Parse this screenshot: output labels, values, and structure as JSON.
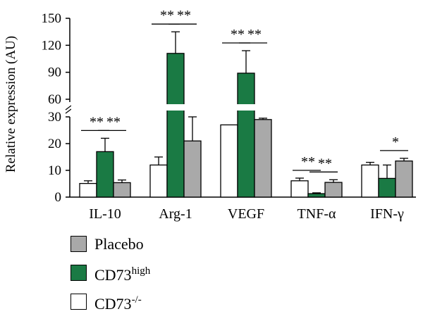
{
  "chart_data": {
    "type": "bar",
    "ylabel": "Relative expression (AU)",
    "y_axis_break": [
      30,
      60
    ],
    "ylim_lower": [
      0,
      30
    ],
    "ylim_upper": [
      60,
      150
    ],
    "yticks_lower": [
      "0",
      "10",
      "20",
      "30"
    ],
    "yticks_upper": [
      "60",
      "90",
      "120",
      "150"
    ],
    "categories": [
      "IL-10",
      "Arg-1",
      "VEGF",
      "TNF-α",
      "IFN-γ"
    ],
    "series": [
      {
        "name": "CD73",
        "superscript": "-/-",
        "color": "#ffffff",
        "values": [
          5.1,
          12,
          27,
          6.1,
          12
        ],
        "errors": [
          1,
          3,
          0,
          1,
          1
        ]
      },
      {
        "name": "CD73",
        "superscript": "high",
        "color": "#1a7a44",
        "values": [
          17,
          111,
          89,
          1.3,
          7
        ],
        "errors": [
          5,
          24,
          25,
          0.3,
          5
        ]
      },
      {
        "name": "Placebo",
        "superscript": "",
        "color": "#a9a9a9",
        "values": [
          5.4,
          21,
          29,
          5.5,
          13.5
        ],
        "errors": [
          1,
          9,
          0.5,
          1,
          1
        ]
      }
    ],
    "significance": [
      {
        "category": 0,
        "from": 0,
        "to": 1,
        "label": "**"
      },
      {
        "category": 0,
        "from": 1,
        "to": 2,
        "label": "**"
      },
      {
        "category": 1,
        "from": 0,
        "to": 1,
        "label": "**"
      },
      {
        "category": 1,
        "from": 1,
        "to": 2,
        "label": "**"
      },
      {
        "category": 2,
        "from": 0,
        "to": 1,
        "label": "**"
      },
      {
        "category": 2,
        "from": 1,
        "to": 2,
        "label": "**"
      },
      {
        "category": 3,
        "from": 0,
        "to": 1,
        "label": "**"
      },
      {
        "category": 3,
        "from": 1,
        "to": 2,
        "label": "**"
      },
      {
        "category": 4,
        "from": 1,
        "to": 2,
        "label": "*"
      }
    ],
    "legend": {
      "placement": "bottom-left",
      "order": [
        2,
        1,
        0
      ]
    }
  }
}
